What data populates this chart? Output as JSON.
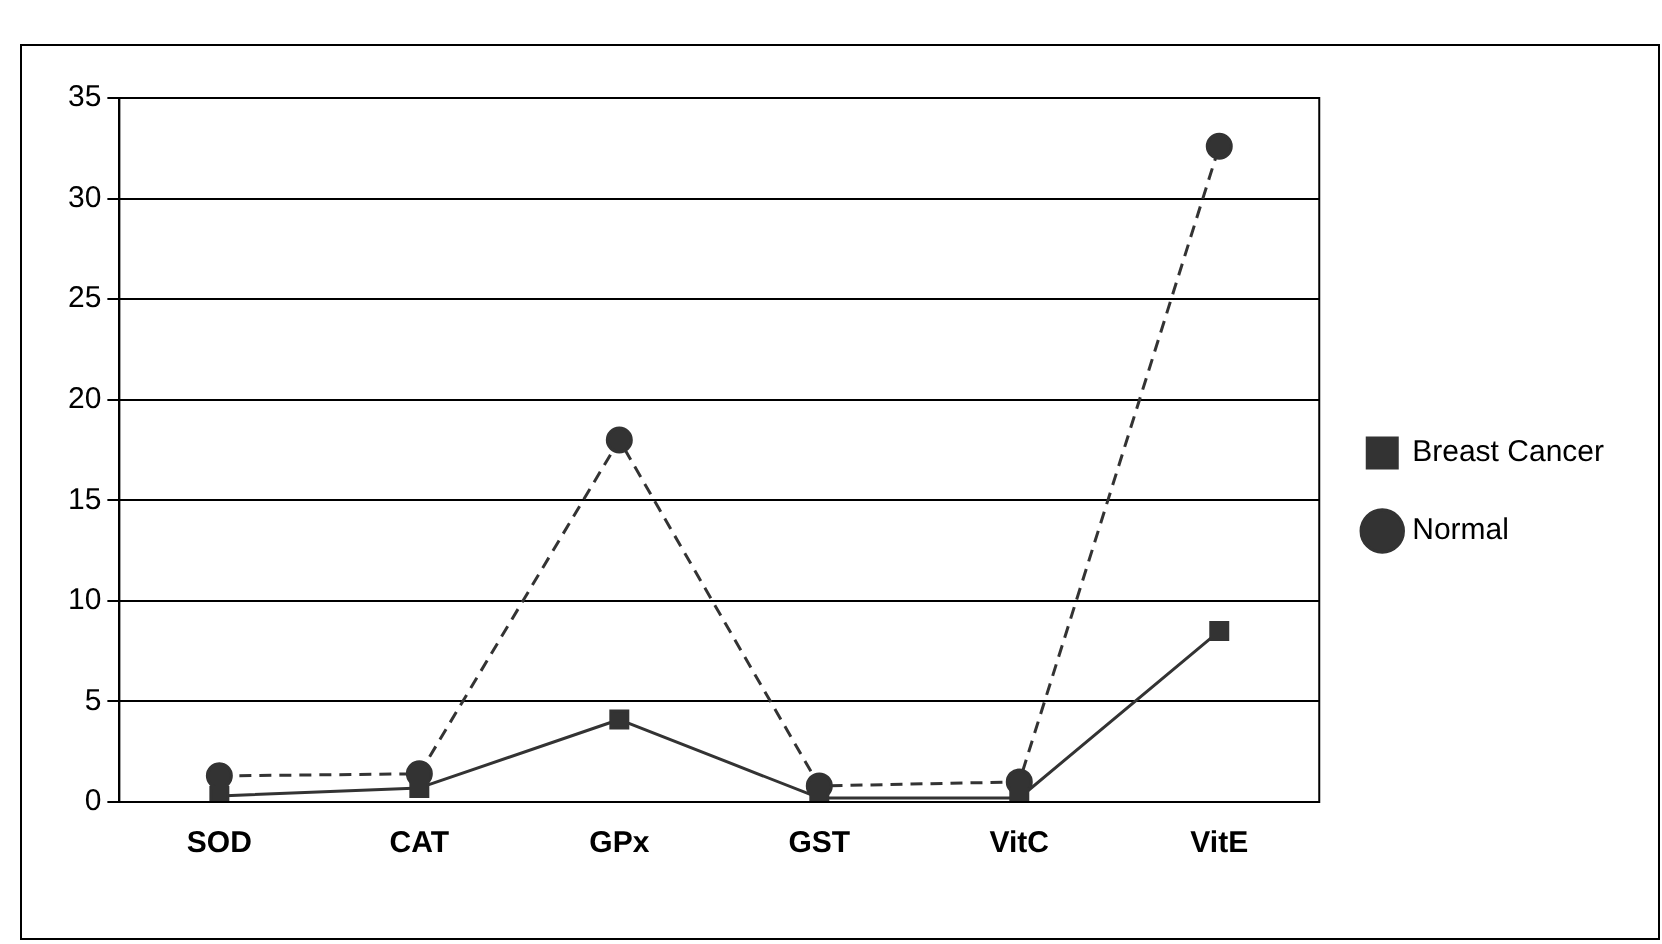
{
  "chart_data": {
    "type": "line",
    "categories": [
      "SOD",
      "CAT",
      "GPx",
      "GST",
      "VitC",
      "VitE"
    ],
    "series": [
      {
        "name": "Normal",
        "color": "#333333",
        "values": [
          1.3,
          1.4,
          18,
          0.8,
          1.0,
          32.6
        ],
        "marker": "circle",
        "line_style": "dashed"
      },
      {
        "name": "Breast Cancer",
        "color": "#333333",
        "values": [
          0.3,
          0.7,
          4.1,
          0.2,
          0.2,
          8.5
        ],
        "marker": "square",
        "line_style": "solid"
      }
    ],
    "ylim": [
      0,
      35
    ],
    "yticks": [
      0,
      5,
      10,
      15,
      20,
      25,
      30,
      35
    ],
    "grid": "y",
    "legend": "right"
  }
}
